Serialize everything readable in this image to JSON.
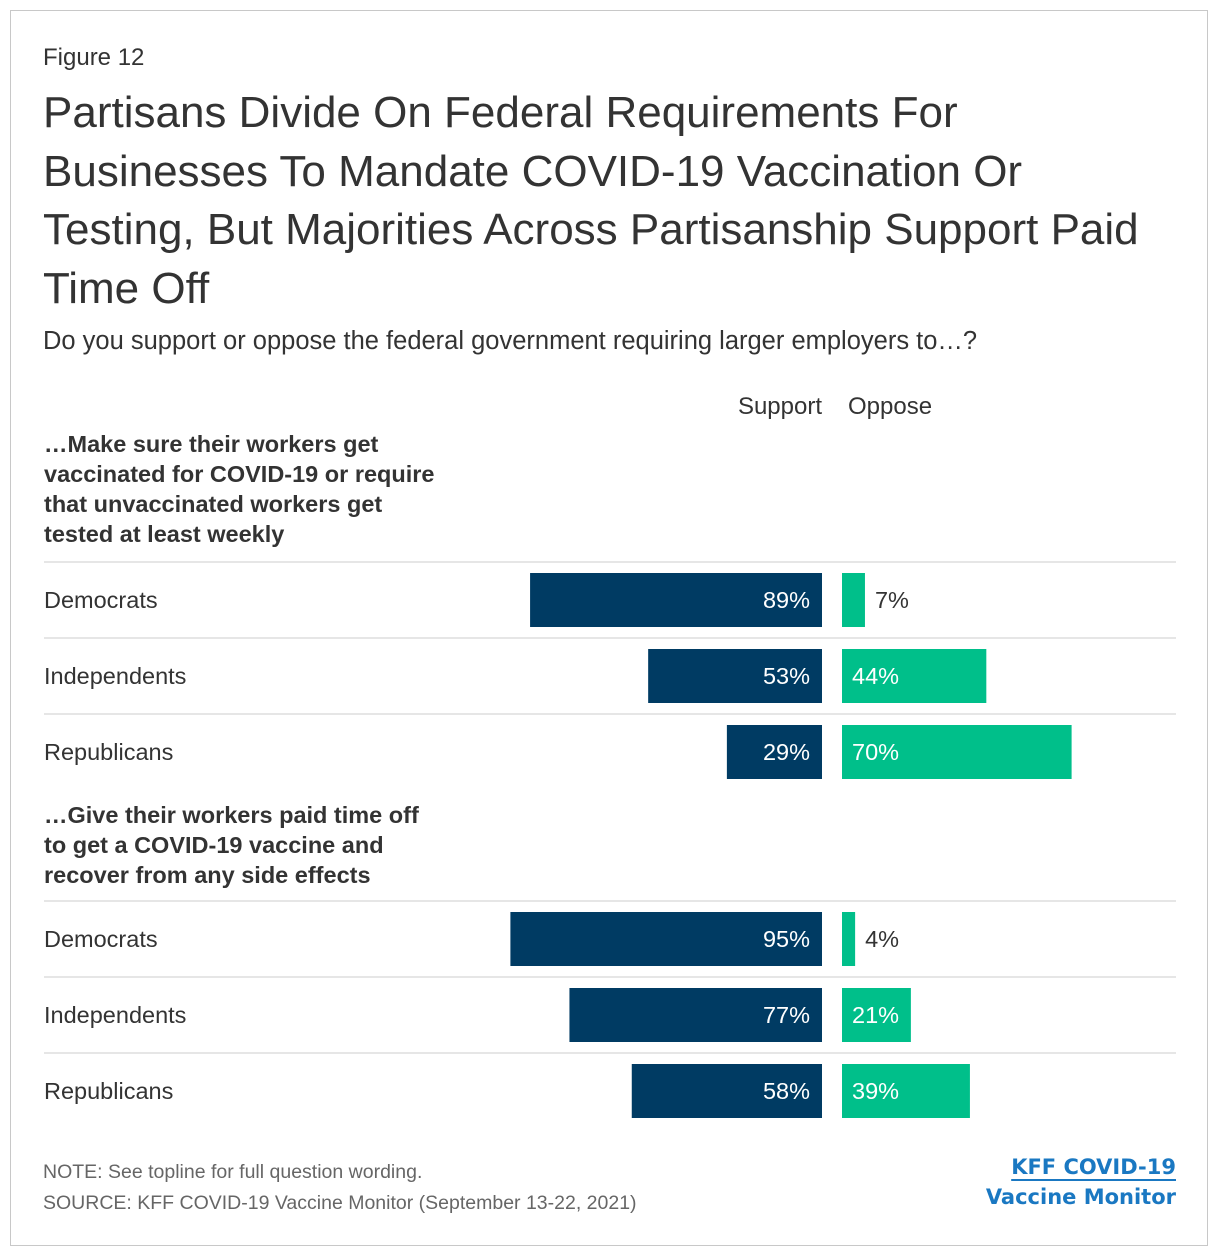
{
  "figure_label": "Figure 12",
  "title": "Partisans Divide On Federal Requirements For Businesses To Mandate COVID-19 Vaccination Or Testing, But Majorities Across Partisanship Support Paid Time Off",
  "subtitle": "Do you support or oppose the federal government requiring larger employers to…?",
  "note": "NOTE: See topline for full question wording.",
  "source": "SOURCE: KFF COVID-19 Vaccine Monitor (September 13-22, 2021)",
  "logo": {
    "line1": "KFF COVID-19",
    "line2": "Vaccine Monitor"
  },
  "colors": {
    "support": "#003b63",
    "oppose": "#00bf8a",
    "text": "#333333",
    "divider": "#cccccc"
  },
  "chart_data": {
    "type": "bar",
    "orientation": "horizontal-diverging",
    "series_labels": {
      "support": "Support",
      "oppose": "Oppose"
    },
    "value_suffix": "%",
    "xlim": [
      0,
      100
    ],
    "groups": [
      {
        "heading": "…Make sure their workers get vaccinated for COVID-19 or require that unvaccinated workers get tested at least weekly",
        "heading_lines": [
          "…Make sure their workers get",
          "vaccinated for COVID-19 or require",
          "that unvaccinated workers get",
          "tested at least weekly"
        ],
        "rows": [
          {
            "label": "Democrats",
            "support": 89,
            "oppose": 7
          },
          {
            "label": "Independents",
            "support": 53,
            "oppose": 44
          },
          {
            "label": "Republicans",
            "support": 29,
            "oppose": 70
          }
        ]
      },
      {
        "heading": "…Give their workers paid time off to get a COVID-19 vaccine and recover from any side effects",
        "heading_lines": [
          "…Give their workers paid time off",
          "to get a COVID-19 vaccine and",
          "recover from any side effects"
        ],
        "rows": [
          {
            "label": "Democrats",
            "support": 95,
            "oppose": 4
          },
          {
            "label": "Independents",
            "support": 77,
            "oppose": 21
          },
          {
            "label": "Republicans",
            "support": 58,
            "oppose": 39
          }
        ]
      }
    ]
  }
}
